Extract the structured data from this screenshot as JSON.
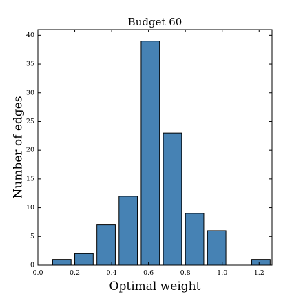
{
  "chart_data": {
    "type": "bar",
    "title": "Budget 60",
    "xlabel": "Optimal weight",
    "ylabel": "Number of edges",
    "xlim": [
      0.0,
      1.27
    ],
    "ylim": [
      0,
      41
    ],
    "x_ticks": [
      "0.0",
      "0.2",
      "0.4",
      "0.6",
      "0.8",
      "1.0",
      "1.2"
    ],
    "y_ticks": [
      "0",
      "5",
      "10",
      "15",
      "20",
      "25",
      "30",
      "35",
      "40"
    ],
    "bin_width": 0.1,
    "bars": [
      {
        "x": 0.13,
        "value": 1
      },
      {
        "x": 0.25,
        "value": 2
      },
      {
        "x": 0.37,
        "value": 7
      },
      {
        "x": 0.49,
        "value": 12
      },
      {
        "x": 0.61,
        "value": 39
      },
      {
        "x": 0.73,
        "value": 23
      },
      {
        "x": 0.85,
        "value": 9
      },
      {
        "x": 0.97,
        "value": 6
      },
      {
        "x": 1.09,
        "value": 0
      },
      {
        "x": 1.21,
        "value": 1
      }
    ],
    "bar_color": "#4682b4",
    "edge_color": "#000000",
    "grid": false,
    "legend": "none"
  }
}
